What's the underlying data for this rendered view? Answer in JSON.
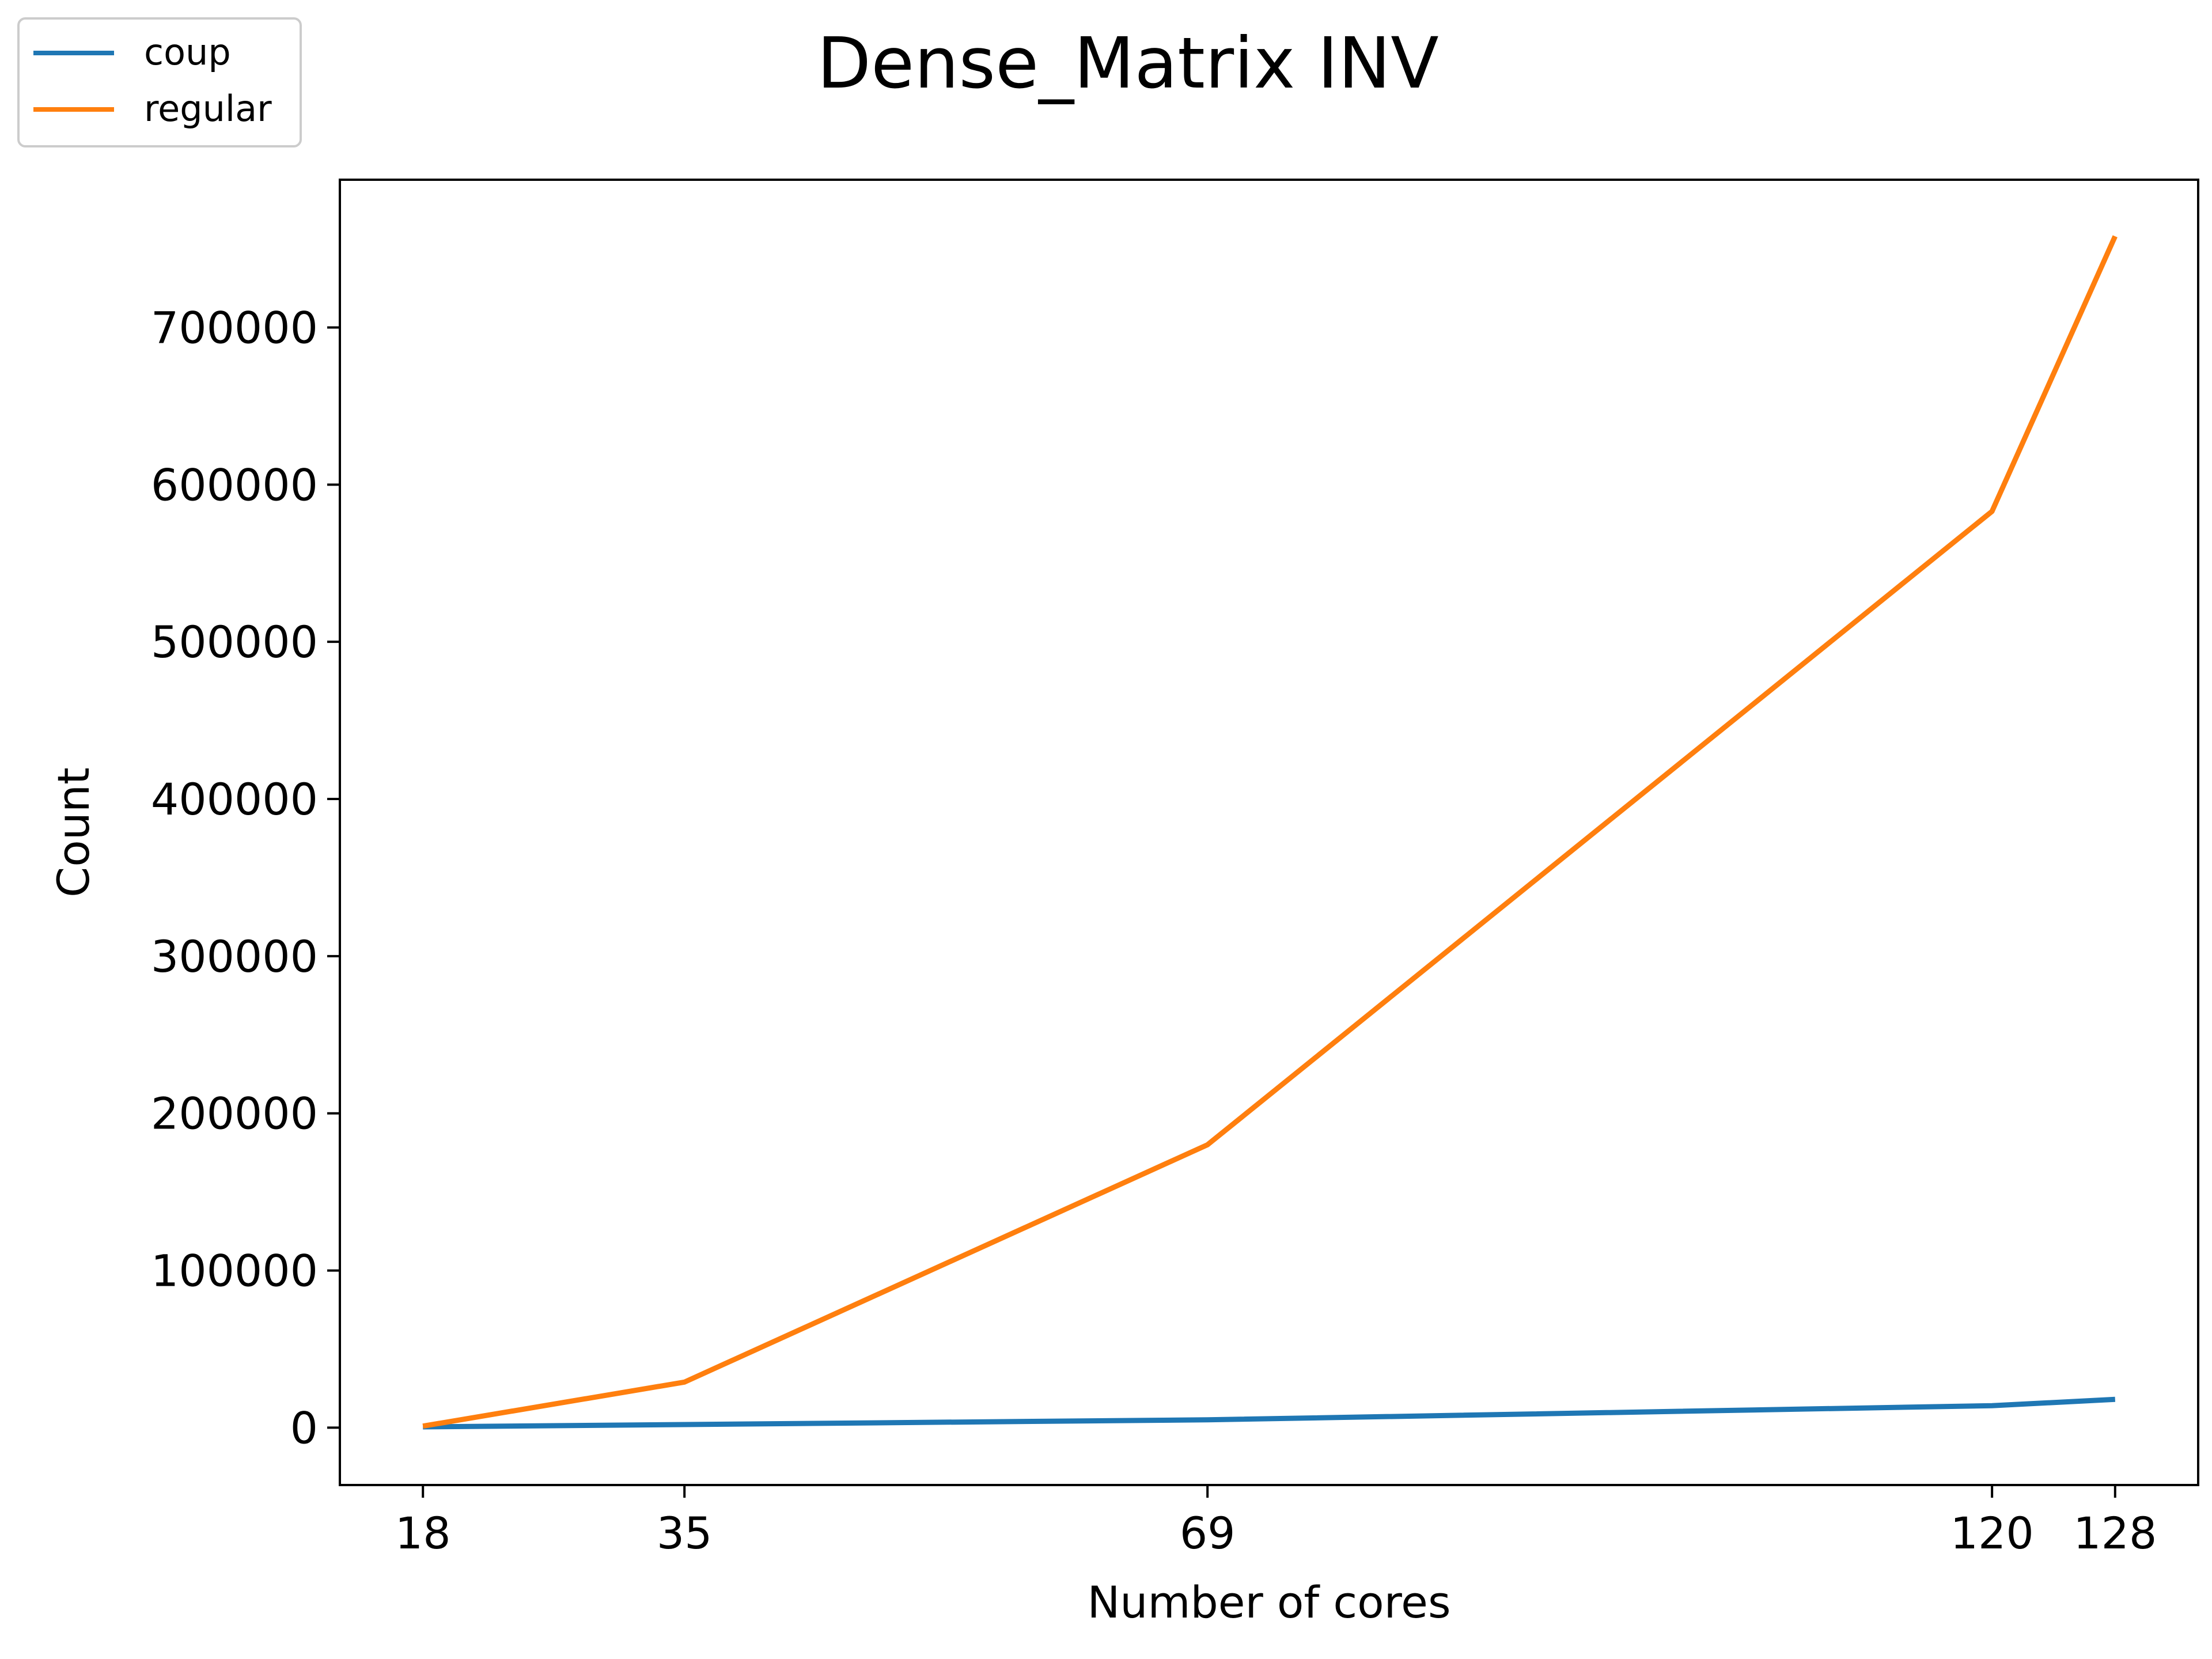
{
  "chart_data": {
    "type": "line",
    "title": "Dense_Matrix INV",
    "xlabel": "Number of cores",
    "ylabel": "Count",
    "x": [
      18,
      35,
      69,
      120,
      128
    ],
    "xticks": [
      "18",
      "35",
      "69",
      "120",
      "128"
    ],
    "yticks": [
      "0",
      "100000",
      "200000",
      "300000",
      "400000",
      "500000",
      "600000",
      "700000"
    ],
    "ytick_values": [
      0,
      100000,
      200000,
      300000,
      400000,
      500000,
      600000,
      700000
    ],
    "xlim": [
      12.6,
      133.4
    ],
    "ylim": [
      -36500,
      794000
    ],
    "grid": false,
    "legend_position": "top-left",
    "series": [
      {
        "name": "coup",
        "color": "#1f77b4",
        "values": [
          500,
          2000,
          5000,
          14000,
          18000
        ]
      },
      {
        "name": "regular",
        "color": "#ff7f0e",
        "values": [
          1000,
          29000,
          180000,
          583000,
          758000
        ]
      }
    ]
  }
}
